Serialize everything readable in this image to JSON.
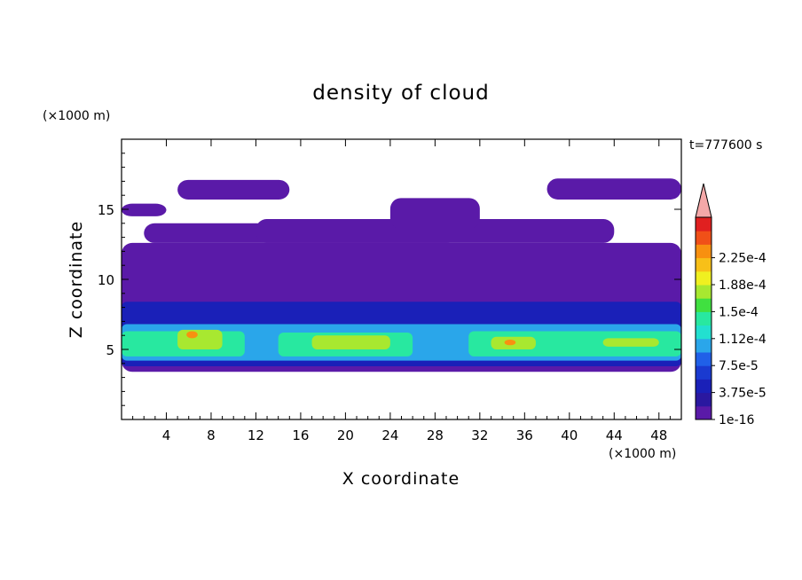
{
  "chart_data": {
    "type": "heatmap",
    "title": "density of cloud",
    "xlabel": "X coordinate",
    "ylabel": "Z coordinate",
    "x_unit": "(×1000 m)",
    "y_unit": "(×1000 m)",
    "time_label": "t=777600 s",
    "xlim": [
      0,
      50
    ],
    "ylim": [
      0,
      20
    ],
    "x_ticks": [
      4,
      8,
      12,
      16,
      20,
      24,
      28,
      32,
      36,
      40,
      44,
      48
    ],
    "y_ticks": [
      5,
      10,
      15
    ],
    "colorbar": {
      "labels": [
        "1e-16",
        "3.75e-5",
        "7.5e-5",
        "1.12e-4",
        "1.5e-4",
        "1.88e-4",
        "2.25e-4"
      ],
      "colors": [
        "#5a1aa8",
        "#2a18a0",
        "#1a20b8",
        "#1a3ad0",
        "#2060e8",
        "#2aa6ea",
        "#22e0d0",
        "#28e8a0",
        "#40e040",
        "#a8e830",
        "#f0f020",
        "#f8c018",
        "#f89010",
        "#f05018",
        "#e02020"
      ],
      "extend_color": "#f4a8a8"
    },
    "layers": [
      {
        "level": "1e-16",
        "regions": [
          {
            "x": [
              0,
              50
            ],
            "z": [
              3.4,
              12.6
            ]
          },
          {
            "x": [
              2,
              30
            ],
            "z": [
              12.6,
              14.0
            ]
          },
          {
            "x": [
              12,
              44
            ],
            "z": [
              12.6,
              14.3
            ]
          },
          {
            "x": [
              5,
              15
            ],
            "z": [
              15.7,
              17.1
            ]
          },
          {
            "x": [
              38,
              50
            ],
            "z": [
              15.7,
              17.2
            ]
          },
          {
            "x": [
              0,
              4
            ],
            "z": [
              14.5,
              15.4
            ]
          },
          {
            "x": [
              24,
              32
            ],
            "z": [
              13.6,
              15.8
            ]
          }
        ]
      },
      {
        "level": "3.75e-5",
        "regions": [
          {
            "x": [
              0,
              50
            ],
            "z": [
              3.8,
              8.4
            ]
          }
        ]
      },
      {
        "level": "7.5e-5",
        "regions": [
          {
            "x": [
              0,
              50
            ],
            "z": [
              4.2,
              6.8
            ]
          }
        ]
      },
      {
        "level": "1.12e-4",
        "regions": [
          {
            "x": [
              0,
              11
            ],
            "z": [
              4.5,
              6.3
            ]
          },
          {
            "x": [
              14,
              26
            ],
            "z": [
              4.5,
              6.2
            ]
          },
          {
            "x": [
              31,
              50
            ],
            "z": [
              4.5,
              6.3
            ]
          }
        ]
      },
      {
        "level": "1.5e-4",
        "regions": [
          {
            "x": [
              5,
              9
            ],
            "z": [
              5.0,
              6.4
            ]
          },
          {
            "x": [
              17,
              24
            ],
            "z": [
              5.0,
              6.0
            ]
          },
          {
            "x": [
              33,
              37
            ],
            "z": [
              5.0,
              5.9
            ]
          },
          {
            "x": [
              43,
              48
            ],
            "z": [
              5.2,
              5.8
            ]
          }
        ]
      },
      {
        "level": "1.88e-4",
        "regions": [
          {
            "x": [
              5.8,
              6.8
            ],
            "z": [
              5.8,
              6.3
            ]
          },
          {
            "x": [
              34.2,
              35.2
            ],
            "z": [
              5.3,
              5.7
            ]
          }
        ]
      }
    ]
  }
}
